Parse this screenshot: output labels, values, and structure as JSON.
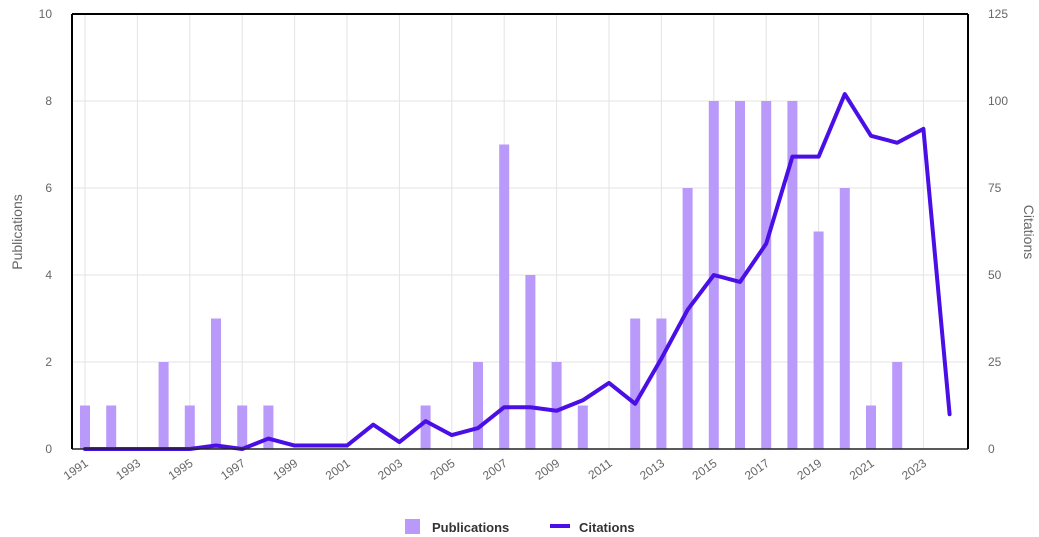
{
  "chart_data": {
    "type": "bar",
    "categories": [
      "1991",
      "1992",
      "1993",
      "1994",
      "1995",
      "1996",
      "1997",
      "1998",
      "1999",
      "2000",
      "2001",
      "2002",
      "2003",
      "2004",
      "2005",
      "2006",
      "2007",
      "2008",
      "2009",
      "2010",
      "2011",
      "2012",
      "2013",
      "2014",
      "2015",
      "2016",
      "2017",
      "2018",
      "2019",
      "2020",
      "2021",
      "2022",
      "2023",
      "2024"
    ],
    "x_tick_labels": [
      "1991",
      "1993",
      "1995",
      "1997",
      "1999",
      "2001",
      "2003",
      "2005",
      "2007",
      "2009",
      "2011",
      "2013",
      "2015",
      "2017",
      "2019",
      "2021",
      "2023"
    ],
    "series": [
      {
        "name": "Publications",
        "type": "bar",
        "axis": "left",
        "values": [
          1,
          1,
          0,
          2,
          1,
          3,
          1,
          1,
          0,
          0,
          0,
          0,
          0,
          1,
          0,
          2,
          7,
          4,
          2,
          1,
          0,
          3,
          3,
          6,
          8,
          8,
          8,
          8,
          5,
          6,
          1,
          2,
          0,
          0
        ]
      },
      {
        "name": "Citations",
        "type": "line",
        "axis": "right",
        "values": [
          0,
          0,
          0,
          0,
          0,
          1,
          0,
          3,
          1,
          1,
          1,
          7,
          2,
          8,
          4,
          6,
          12,
          12,
          11,
          14,
          19,
          13,
          26,
          40,
          50,
          48,
          59,
          84,
          84,
          102,
          90,
          88,
          92,
          10
        ]
      }
    ],
    "ylabel": "Publications",
    "y2label": "Citations",
    "ylim": [
      0,
      10
    ],
    "yticks": [
      "0",
      "2",
      "4",
      "6",
      "8",
      "10"
    ],
    "y2lim": [
      0,
      125
    ],
    "y2ticks": [
      "0",
      "25",
      "50",
      "75",
      "100",
      "125"
    ],
    "grid": true,
    "legend_position": "bottom-center",
    "colors": {
      "Publications": "#b999fa",
      "Citations": "#4a0ee6"
    }
  }
}
